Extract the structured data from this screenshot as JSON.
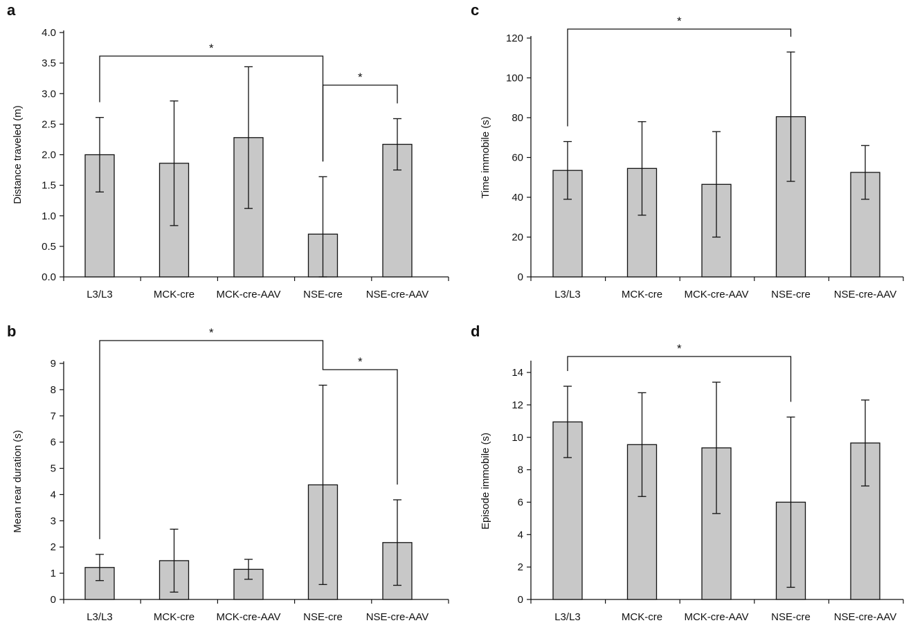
{
  "colors": {
    "bar_fill": "#c8c8c8",
    "stroke": "#111111",
    "background": "#ffffff"
  },
  "chart_data": [
    {
      "panel_label": "a",
      "type": "bar",
      "categories": [
        "L3/L3",
        "MCK-cre",
        "MCK-cre-AAV",
        "NSE-cre",
        "NSE-cre-AAV"
      ],
      "values": [
        2.0,
        1.86,
        2.28,
        0.7,
        2.17
      ],
      "errors": [
        0.61,
        1.02,
        1.16,
        0.94,
        0.42
      ],
      "ylabel": "Distance traveled (m)",
      "ylim": [
        0,
        4.0
      ],
      "yticks": [
        "0.0",
        "0.5",
        "1.0",
        "1.5",
        "2.0",
        "2.5",
        "3.0",
        "3.5",
        "4.0"
      ],
      "grid": false,
      "significance": [
        {
          "from": 0,
          "to": 3,
          "label": "*"
        },
        {
          "from": 3,
          "to": 4,
          "label": "*"
        }
      ]
    },
    {
      "panel_label": "b",
      "type": "bar",
      "categories": [
        "L3/L3",
        "MCK-cre",
        "MCK-cre-AAV",
        "NSE-cre",
        "NSE-cre-AAV"
      ],
      "values": [
        1.22,
        1.48,
        1.15,
        4.37,
        2.17
      ],
      "errors": [
        0.5,
        1.2,
        0.38,
        3.8,
        1.63
      ],
      "ylabel": "Mean rear duration (s)",
      "ylim": [
        0,
        9
      ],
      "yticks": [
        "0",
        "1",
        "2",
        "3",
        "4",
        "5",
        "6",
        "7",
        "8",
        "9"
      ],
      "grid": false,
      "significance": [
        {
          "from": 0,
          "to": 3,
          "label": "*"
        },
        {
          "from": 3,
          "to": 4,
          "label": "*"
        }
      ]
    },
    {
      "panel_label": "c",
      "type": "bar",
      "categories": [
        "L3/L3",
        "MCK-cre",
        "MCK-cre-AAV",
        "NSE-cre",
        "NSE-cre-AAV"
      ],
      "values": [
        53.5,
        54.5,
        46.5,
        80.5,
        52.5
      ],
      "errors": [
        14.5,
        23.5,
        26.5,
        32.5,
        13.5
      ],
      "ylabel": "Time immobile (s)",
      "ylim": [
        0,
        120
      ],
      "yticks": [
        "0",
        "20",
        "40",
        "60",
        "80",
        "100",
        "120"
      ],
      "grid": false,
      "significance": [
        {
          "from": 0,
          "to": 3,
          "label": "*"
        }
      ]
    },
    {
      "panel_label": "d",
      "type": "bar",
      "categories": [
        "L3/L3",
        "MCK-cre",
        "MCK-cre-AAV",
        "NSE-cre",
        "NSE-cre-AAV"
      ],
      "values": [
        10.95,
        9.55,
        9.35,
        6.0,
        9.65
      ],
      "errors": [
        2.2,
        3.2,
        4.05,
        5.25,
        2.65
      ],
      "ylabel": "Episode immobile (s)",
      "ylim": [
        0,
        14.6
      ],
      "yticks": [
        "0",
        "2",
        "4",
        "6",
        "8",
        "10",
        "12",
        "14"
      ],
      "grid": false,
      "significance": [
        {
          "from": 0,
          "to": 3,
          "label": "*"
        }
      ]
    }
  ]
}
